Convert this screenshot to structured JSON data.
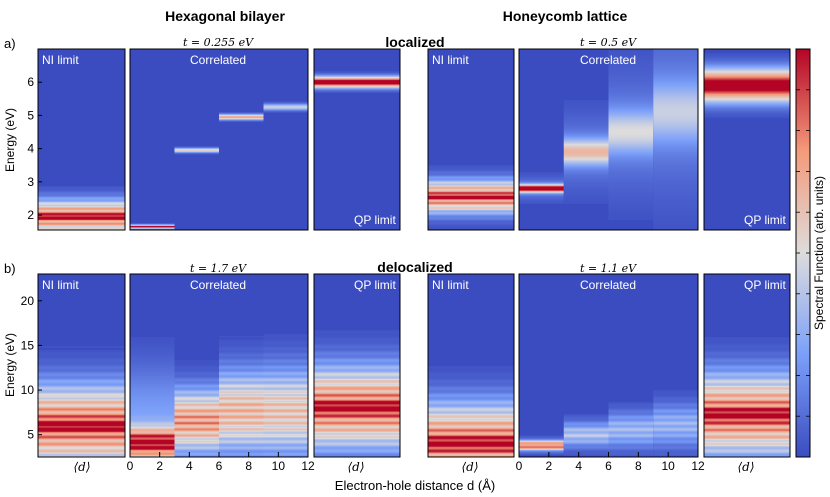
{
  "chart_data": {
    "type": "heatmap",
    "column_titles": [
      "Hexagonal bilayer",
      "Honeycomb lattice"
    ],
    "colorbar_label": "Spectral Function (arb. units)",
    "xlabel": "Electron-hole distance d (Å)",
    "panel_labels": {
      "NI": "NI limit",
      "Correlated": "Correlated",
      "QP": "QP limit"
    },
    "mean_tick_label": "⟨d⟩",
    "x_ticks": [
      "0",
      "2",
      "4",
      "6",
      "8",
      "10",
      "12"
    ],
    "rows": [
      {
        "id": "a",
        "label": "a)",
        "regime": "localized",
        "ylabel": "Energy (eV)",
        "ylim": [
          1.55,
          7.0
        ],
        "y_ticks": [
          "2",
          "3",
          "4",
          "5",
          "6"
        ],
        "tick_values": [
          2,
          3,
          4,
          5,
          6
        ],
        "systems": [
          {
            "name": "Hexagonal bilayer",
            "hopping": "t = 0.255 eV",
            "ni_peak_eV": 1.95,
            "qp_peak_eV": 6.0,
            "correlated_peaks": [
              {
                "d": "0-3",
                "energy_eV": 1.65
              },
              {
                "d": "3-6",
                "energy_eV": 3.95
              },
              {
                "d": "6-9",
                "energy_eV": 4.95
              },
              {
                "d": "9-12",
                "energy_eV": 5.25
              }
            ]
          },
          {
            "name": "Honeycomb lattice",
            "hopping": "t = 0.5 eV",
            "ni_peak_eV": 2.55,
            "qp_peak_eV": 5.9,
            "correlated_peaks": [
              {
                "d": "0-3",
                "energy_eV": 2.8
              },
              {
                "d": "3-6",
                "energy_eV": 3.9
              },
              {
                "d": "6-9",
                "energy_eV": 4.5
              },
              {
                "d": "9-12",
                "energy_eV": 5.1
              }
            ]
          }
        ]
      },
      {
        "id": "b",
        "label": "b)",
        "regime": "delocalized",
        "ylabel": "Energy (eV)",
        "ylim": [
          2.5,
          23.0
        ],
        "y_ticks": [
          "5",
          "10",
          "15",
          "20"
        ],
        "tick_values": [
          5,
          10,
          15,
          20
        ],
        "systems": [
          {
            "name": "Hexagonal bilayer",
            "hopping": "t = 1.7 eV",
            "ni_peak_eV": 6.0,
            "qp_peak_eV": 8.0,
            "correlated_peaks": [
              {
                "d": "0-3",
                "energy_eV": 4.0
              },
              {
                "d": "3-6",
                "energy_eV": 6.5
              },
              {
                "d": "6-9",
                "energy_eV": 7.5
              },
              {
                "d": "9-12",
                "energy_eV": 7.5
              }
            ]
          },
          {
            "name": "Honeycomb lattice",
            "hopping": "t = 1.1 eV",
            "ni_peak_eV": 4.0,
            "qp_peak_eV": 7.2,
            "correlated_peaks": [
              {
                "d": "0-3",
                "energy_eV": 3.8
              },
              {
                "d": "3-6",
                "energy_eV": 5.0
              },
              {
                "d": "6-9",
                "energy_eV": 5.5
              },
              {
                "d": "9-12",
                "energy_eV": 6.0
              }
            ]
          }
        ]
      }
    ]
  }
}
